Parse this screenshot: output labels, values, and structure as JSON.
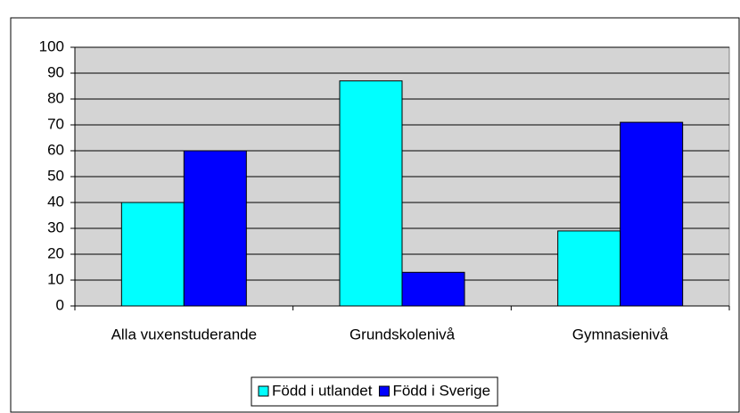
{
  "chart_data": {
    "type": "bar",
    "categories": [
      "Alla vuxenstuderande",
      "Grundskolenivå",
      "Gymnasienivå"
    ],
    "series": [
      {
        "name": "Född i utlandet",
        "color": "#00ffff",
        "values": [
          40,
          87,
          29
        ]
      },
      {
        "name": "Född i Sverige",
        "color": "#0000ff",
        "values": [
          60,
          13,
          71
        ]
      }
    ],
    "ylim": [
      0,
      100
    ],
    "yticks": [
      0,
      10,
      20,
      30,
      40,
      50,
      60,
      70,
      80,
      90,
      100
    ],
    "grid": true,
    "legend": "bottom"
  }
}
